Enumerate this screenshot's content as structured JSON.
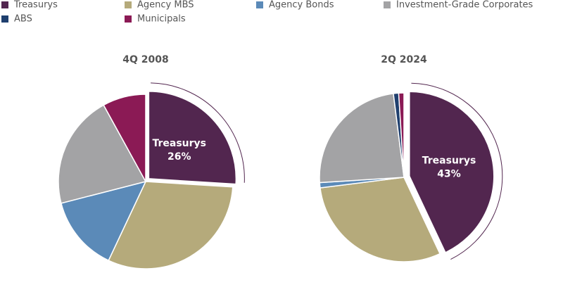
{
  "chart_data": [
    {
      "type": "pie",
      "title": "4Q 2008",
      "categories": [
        "Treasurys",
        "Agency MBS",
        "Agency Bonds",
        "Investment-Grade Corporates",
        "ABS",
        "Municipals"
      ],
      "values": [
        26,
        31,
        14,
        21,
        0,
        8
      ],
      "value_labels": [
        "26%",
        null,
        null,
        null,
        null,
        null
      ],
      "colors": [
        "#52264f",
        "#b5aa7b",
        "#5b8ab8",
        "#a3a3a5",
        "#1f3f6e",
        "#8b1a55"
      ]
    },
    {
      "type": "pie",
      "title": "2Q 2024",
      "categories": [
        "Treasurys",
        "Agency MBS",
        "Agency Bonds",
        "Investment-Grade Corporates",
        "ABS",
        "Municipals"
      ],
      "values": [
        43,
        30,
        1,
        24,
        1,
        1
      ],
      "value_labels": [
        "43%",
        null,
        null,
        null,
        null,
        null
      ],
      "colors": [
        "#52264f",
        "#b5aa7b",
        "#5b8ab8",
        "#a3a3a5",
        "#1f3f6e",
        "#8b1a55"
      ]
    }
  ]
}
